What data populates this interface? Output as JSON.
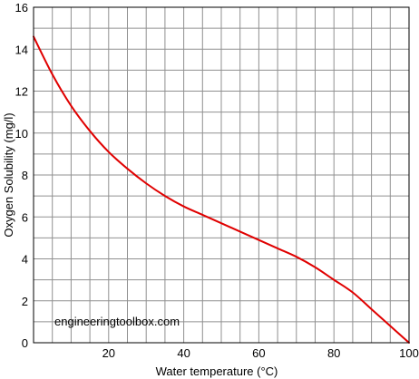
{
  "chart_data": {
    "type": "line",
    "xlabel": "Water temperature (°C)",
    "ylabel": "Oxygen Solubility (mg/l)",
    "xlim": [
      0,
      100
    ],
    "ylim": [
      0,
      16
    ],
    "x_grid_step": 5,
    "y_grid_step": 1,
    "grid": true,
    "x_tick_labels": [
      "20",
      "40",
      "60",
      "80",
      "100"
    ],
    "y_tick_labels": [
      "0",
      "2",
      "4",
      "6",
      "8",
      "10",
      "12",
      "14",
      "16"
    ],
    "series": [
      {
        "color": "#e00000",
        "x": [
          0,
          5,
          10,
          15,
          20,
          25,
          30,
          35,
          40,
          45,
          50,
          55,
          60,
          65,
          70,
          75,
          80,
          85,
          90,
          95,
          100
        ],
        "y": [
          14.6,
          12.8,
          11.3,
          10.1,
          9.1,
          8.3,
          7.6,
          7.0,
          6.5,
          6.1,
          5.7,
          5.3,
          4.9,
          4.5,
          4.1,
          3.6,
          3.0,
          2.4,
          1.6,
          0.8,
          0.0
        ]
      }
    ],
    "annotations": [
      "engineeringtoolbox.com"
    ]
  }
}
